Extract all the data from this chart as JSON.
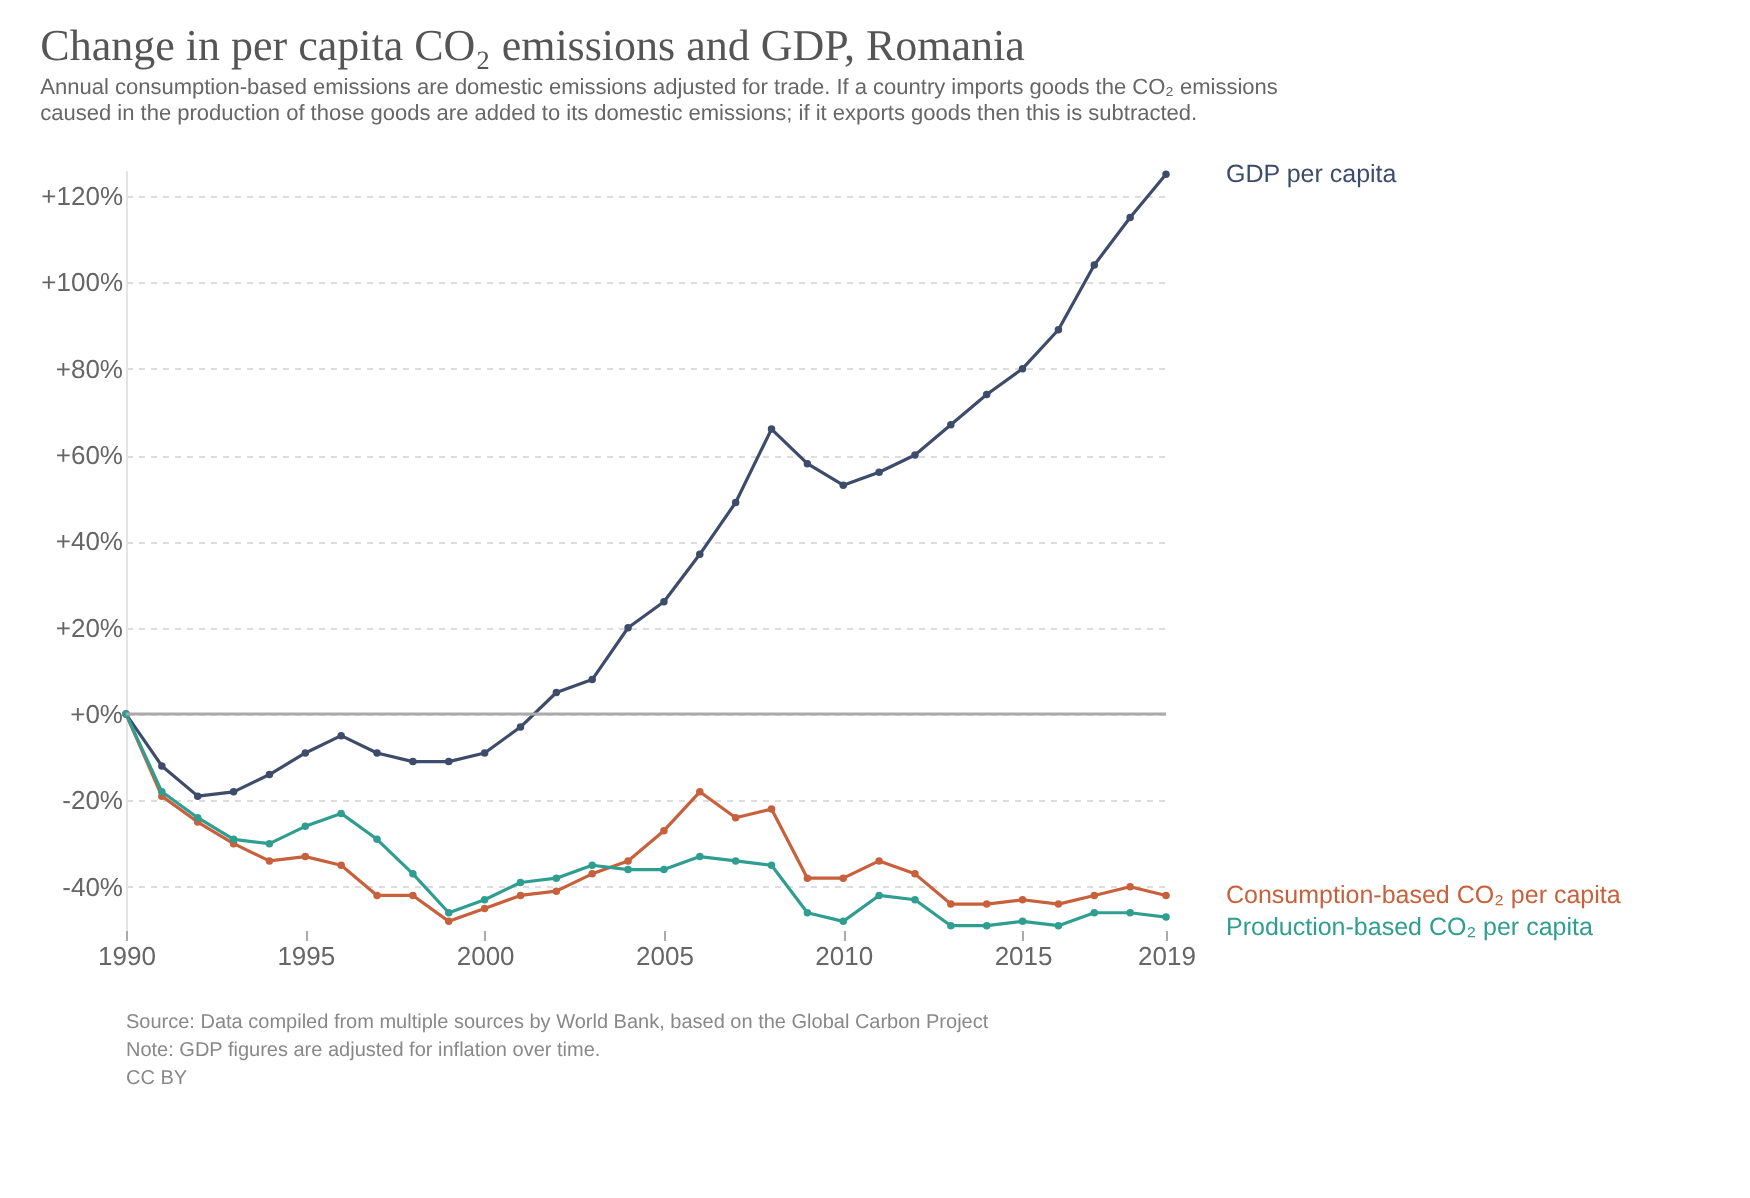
{
  "chart_data": {
    "type": "line",
    "title": "Change in per capita CO₂ emissions and GDP, Romania",
    "subtitle": "Annual consumption-based emissions are domestic emissions adjusted for trade. If a country imports goods the CO₂ emissions caused in the production of those goods are added to its domestic emissions; if it exports goods then this is subtracted.",
    "x": [
      1990,
      1991,
      1992,
      1993,
      1994,
      1995,
      1996,
      1997,
      1998,
      1999,
      2000,
      2001,
      2002,
      2003,
      2004,
      2005,
      2006,
      2007,
      2008,
      2009,
      2010,
      2011,
      2012,
      2013,
      2014,
      2015,
      2016,
      2017,
      2018,
      2019
    ],
    "series": [
      {
        "name": "GDP per capita",
        "color": "#3d4c6a",
        "values": [
          0,
          -12,
          -19,
          -18,
          -14,
          -9,
          -5,
          -9,
          -11,
          -11,
          -9,
          -3,
          5,
          8,
          20,
          26,
          37,
          49,
          66,
          58,
          53,
          56,
          60,
          67,
          74,
          80,
          89,
          104,
          115,
          125
        ]
      },
      {
        "name": "Consumption-based CO₂ per capita",
        "color": "#c8603c",
        "values": [
          0,
          -19,
          -25,
          -30,
          -34,
          -33,
          -35,
          -42,
          -42,
          -48,
          -45,
          -42,
          -41,
          -37,
          -34,
          -27,
          -18,
          -24,
          -22,
          -38,
          -38,
          -34,
          -37,
          -44,
          -44,
          -43,
          -44,
          -42,
          -40,
          -42
        ]
      },
      {
        "name": "Production-based CO₂ per capita",
        "color": "#2f9e90",
        "values": [
          0,
          -18,
          -24,
          -29,
          -30,
          -26,
          -23,
          -29,
          -37,
          -46,
          -43,
          -39,
          -38,
          -35,
          -36,
          -36,
          -33,
          -34,
          -35,
          -46,
          -48,
          -42,
          -43,
          -49,
          -49,
          -48,
          -49,
          -46,
          -46,
          -47
        ]
      }
    ],
    "xlim": [
      1990,
      2019
    ],
    "xticks": [
      1990,
      1995,
      2000,
      2005,
      2010,
      2015,
      2019
    ],
    "ylim": [
      -50,
      126
    ],
    "yticks": [
      {
        "value": -40,
        "label": "-40%"
      },
      {
        "value": -20,
        "label": "-20%"
      },
      {
        "value": 0,
        "label": "+0%"
      },
      {
        "value": 20,
        "label": "+20%"
      },
      {
        "value": 40,
        "label": "+40%"
      },
      {
        "value": 60,
        "label": "+60%"
      },
      {
        "value": 80,
        "label": "+80%"
      },
      {
        "value": 100,
        "label": "+100%"
      },
      {
        "value": 120,
        "label": "+120%"
      }
    ],
    "grid": "y",
    "marker": "circle",
    "line_style": "solid",
    "legend": false,
    "ref_lines": [
      {
        "axis": "y",
        "value": 0
      }
    ],
    "annotations": [
      "Source: Data compiled from multiple sources by World Bank, based on the Global Carbon Project",
      "Note: GDP figures are adjusted for inflation over time.",
      "CC BY"
    ]
  }
}
